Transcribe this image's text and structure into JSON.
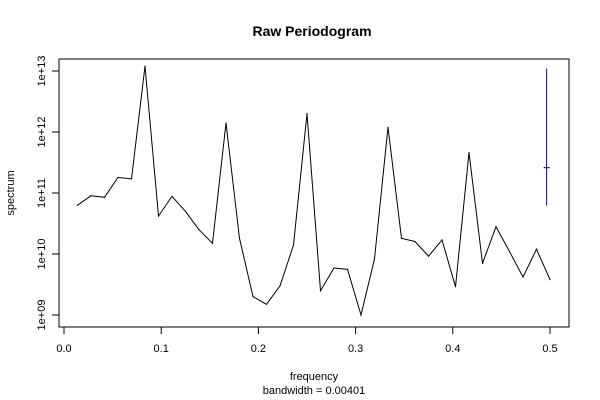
{
  "chart_data": {
    "type": "line",
    "title": "Raw Periodogram",
    "xlabel": "frequency",
    "xlabel_sub": "bandwidth = 0.00401",
    "ylabel": "spectrum",
    "y_scale": "log",
    "xlim": [
      0.0,
      0.5
    ],
    "ylim": [
      1000000000.0,
      10000000000000.0
    ],
    "x_ticks": [
      {
        "value": 0.0,
        "label": "0.0"
      },
      {
        "value": 0.1,
        "label": "0.1"
      },
      {
        "value": 0.2,
        "label": "0.2"
      },
      {
        "value": 0.3,
        "label": "0.3"
      },
      {
        "value": 0.4,
        "label": "0.4"
      },
      {
        "value": 0.5,
        "label": "0.5"
      }
    ],
    "y_ticks": [
      {
        "value": 1000000000.0,
        "label": "1e+09"
      },
      {
        "value": 10000000000.0,
        "label": "1e+10"
      },
      {
        "value": 100000000000.0,
        "label": "1e+11"
      },
      {
        "value": 1000000000000.0,
        "label": "1e+12"
      },
      {
        "value": 10000000000000.0,
        "label": "1e+13"
      }
    ],
    "grid": false,
    "series": [
      {
        "color": "#000000",
        "x": [
          0.0139,
          0.0278,
          0.0417,
          0.0556,
          0.0694,
          0.0833,
          0.0972,
          0.1111,
          0.125,
          0.1389,
          0.1528,
          0.1667,
          0.1806,
          0.1944,
          0.2083,
          0.2222,
          0.2361,
          0.25,
          0.2639,
          0.2778,
          0.2917,
          0.3056,
          0.3194,
          0.3333,
          0.3472,
          0.3611,
          0.375,
          0.3889,
          0.4028,
          0.4167,
          0.4306,
          0.4444,
          0.4583,
          0.4722,
          0.4861,
          0.5
        ],
        "y": [
          63000000000.0,
          90000000000.0,
          85000000000.0,
          180000000000.0,
          170000000000.0,
          12000000000000.0,
          42000000000.0,
          88000000000.0,
          50000000000.0,
          25000000000.0,
          15000000000.0,
          1400000000000.0,
          18000000000.0,
          2000000000.0,
          1500000000.0,
          3000000000.0,
          14000000000.0,
          2000000000000.0,
          2500000000.0,
          5900000000.0,
          5600000000.0,
          1000000000.0,
          8300000000.0,
          1200000000000.0,
          18000000000.0,
          16000000000.0,
          9200000000.0,
          17000000000.0,
          2900000000.0,
          460000000000.0,
          7000000000.0,
          28000000000.0,
          11000000000.0,
          4200000000.0,
          12000000000.0,
          3800000000.0
        ]
      }
    ],
    "confidence_bar": {
      "color": "#0000ff",
      "x": 0.4965,
      "y_low": 62000000000.0,
      "y_mid": 260000000000.0,
      "y_high": 11000000000000.0
    }
  }
}
